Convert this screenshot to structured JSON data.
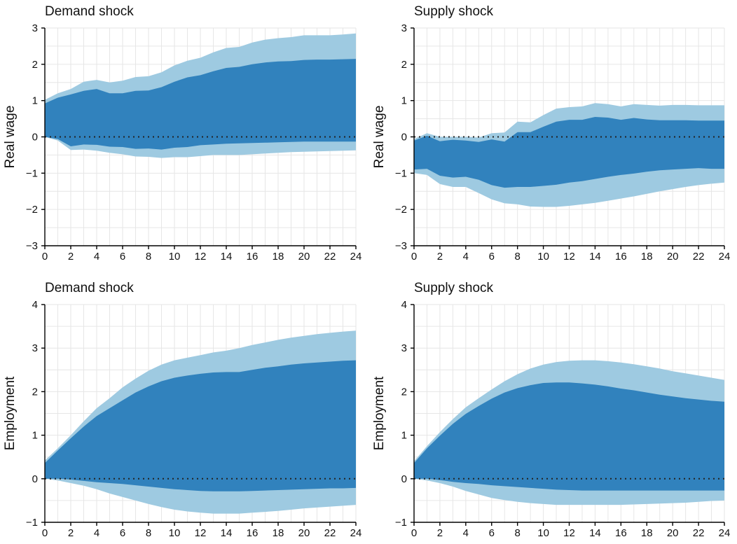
{
  "colors": {
    "outer_band": "#9ecae1",
    "inner_band": "#3182bd",
    "zero_line": "#222222",
    "grid": "#e6e6e6"
  },
  "chart_data": [
    {
      "type": "area",
      "title": "Demand shock",
      "ylabel": "Real wage",
      "xlim": [
        0,
        24
      ],
      "ylim": [
        -3,
        3
      ],
      "xticks": [
        0,
        2,
        4,
        6,
        8,
        10,
        12,
        14,
        16,
        18,
        20,
        22,
        24
      ],
      "yticks": [
        -3,
        -2,
        -1,
        0,
        1,
        2,
        3
      ],
      "ytick_labels": [
        "−3",
        "−2",
        "−1",
        "0",
        "1",
        "2",
        "3"
      ],
      "grid": true,
      "zero_line": "dotted",
      "x": [
        0,
        1,
        2,
        3,
        4,
        5,
        6,
        7,
        8,
        9,
        10,
        11,
        12,
        13,
        14,
        15,
        16,
        17,
        18,
        19,
        20,
        21,
        22,
        23,
        24
      ],
      "series": [
        {
          "role": "outer_band",
          "upper": [
            1.02,
            1.2,
            1.32,
            1.52,
            1.57,
            1.5,
            1.55,
            1.65,
            1.67,
            1.78,
            1.97,
            2.1,
            2.18,
            2.33,
            2.45,
            2.48,
            2.6,
            2.68,
            2.72,
            2.75,
            2.8,
            2.8,
            2.8,
            2.82,
            2.85
          ],
          "lower": [
            0.0,
            -0.1,
            -0.36,
            -0.35,
            -0.38,
            -0.44,
            -0.48,
            -0.54,
            -0.55,
            -0.58,
            -0.56,
            -0.56,
            -0.53,
            -0.5,
            -0.5,
            -0.5,
            -0.48,
            -0.46,
            -0.44,
            -0.42,
            -0.41,
            -0.4,
            -0.39,
            -0.38,
            -0.37
          ]
        },
        {
          "role": "inner_band",
          "upper": [
            0.92,
            1.08,
            1.17,
            1.27,
            1.32,
            1.2,
            1.2,
            1.27,
            1.28,
            1.37,
            1.52,
            1.64,
            1.7,
            1.81,
            1.9,
            1.93,
            2.0,
            2.05,
            2.08,
            2.09,
            2.12,
            2.13,
            2.13,
            2.14,
            2.15
          ],
          "lower": [
            0.0,
            -0.06,
            -0.26,
            -0.21,
            -0.22,
            -0.27,
            -0.28,
            -0.33,
            -0.32,
            -0.35,
            -0.3,
            -0.28,
            -0.23,
            -0.21,
            -0.19,
            -0.18,
            -0.17,
            -0.16,
            -0.15,
            -0.14,
            -0.13,
            -0.13,
            -0.13,
            -0.13,
            -0.13
          ]
        }
      ]
    },
    {
      "type": "area",
      "title": "Supply shock",
      "ylabel": "Real wage",
      "xlim": [
        0,
        24
      ],
      "ylim": [
        -3,
        3
      ],
      "xticks": [
        0,
        2,
        4,
        6,
        8,
        10,
        12,
        14,
        16,
        18,
        20,
        22,
        24
      ],
      "yticks": [
        -3,
        -2,
        -1,
        0,
        1,
        2,
        3
      ],
      "ytick_labels": [
        "−3",
        "−2",
        "−1",
        "0",
        "1",
        "2",
        "3"
      ],
      "grid": true,
      "zero_line": "dotted",
      "x": [
        0,
        1,
        2,
        3,
        4,
        5,
        6,
        7,
        8,
        9,
        10,
        11,
        12,
        13,
        14,
        15,
        16,
        17,
        18,
        19,
        20,
        21,
        22,
        23,
        24
      ],
      "series": [
        {
          "role": "outer_band",
          "upper": [
            -0.06,
            0.1,
            0.0,
            0.0,
            0.0,
            -0.02,
            0.1,
            0.12,
            0.42,
            0.4,
            0.6,
            0.78,
            0.82,
            0.84,
            0.93,
            0.9,
            0.84,
            0.9,
            0.88,
            0.86,
            0.88,
            0.88,
            0.87,
            0.87,
            0.87
          ],
          "lower": [
            -1.0,
            -1.05,
            -1.3,
            -1.38,
            -1.38,
            -1.55,
            -1.72,
            -1.83,
            -1.86,
            -1.92,
            -1.93,
            -1.93,
            -1.9,
            -1.86,
            -1.82,
            -1.76,
            -1.7,
            -1.64,
            -1.57,
            -1.5,
            -1.44,
            -1.38,
            -1.33,
            -1.29,
            -1.26
          ]
        },
        {
          "role": "inner_band",
          "upper": [
            -0.1,
            0.03,
            -0.12,
            -0.08,
            -0.1,
            -0.14,
            -0.07,
            -0.13,
            0.13,
            0.13,
            0.28,
            0.42,
            0.47,
            0.47,
            0.55,
            0.53,
            0.47,
            0.52,
            0.48,
            0.46,
            0.46,
            0.46,
            0.45,
            0.45,
            0.45
          ],
          "lower": [
            -0.9,
            -0.88,
            -1.07,
            -1.12,
            -1.1,
            -1.18,
            -1.33,
            -1.4,
            -1.38,
            -1.38,
            -1.35,
            -1.32,
            -1.26,
            -1.22,
            -1.16,
            -1.1,
            -1.05,
            -1.01,
            -0.96,
            -0.92,
            -0.9,
            -0.88,
            -0.86,
            -0.88,
            -0.88
          ]
        }
      ]
    },
    {
      "type": "area",
      "title": "Demand shock",
      "ylabel": "Employment",
      "xlim": [
        0,
        24
      ],
      "ylim": [
        -1,
        4
      ],
      "xticks": [
        0,
        2,
        4,
        6,
        8,
        10,
        12,
        14,
        16,
        18,
        20,
        22,
        24
      ],
      "yticks": [
        -1,
        0,
        1,
        2,
        3,
        4
      ],
      "ytick_labels": [
        "−1",
        "0",
        "1",
        "2",
        "3",
        "4"
      ],
      "grid": true,
      "zero_line": "dotted",
      "x": [
        0,
        1,
        2,
        3,
        4,
        5,
        6,
        7,
        8,
        9,
        10,
        11,
        12,
        13,
        14,
        15,
        16,
        17,
        18,
        19,
        20,
        21,
        22,
        23,
        24
      ],
      "series": [
        {
          "role": "outer_band",
          "upper": [
            0.42,
            0.7,
            1.0,
            1.32,
            1.62,
            1.85,
            2.1,
            2.3,
            2.48,
            2.62,
            2.72,
            2.78,
            2.84,
            2.9,
            2.94,
            3.0,
            3.07,
            3.13,
            3.19,
            3.24,
            3.28,
            3.32,
            3.35,
            3.38,
            3.4
          ],
          "lower": [
            0.0,
            -0.04,
            -0.1,
            -0.16,
            -0.24,
            -0.34,
            -0.42,
            -0.5,
            -0.58,
            -0.65,
            -0.71,
            -0.75,
            -0.78,
            -0.8,
            -0.8,
            -0.8,
            -0.78,
            -0.76,
            -0.74,
            -0.71,
            -0.68,
            -0.66,
            -0.64,
            -0.62,
            -0.6
          ]
        },
        {
          "role": "inner_band",
          "upper": [
            0.36,
            0.65,
            0.93,
            1.2,
            1.44,
            1.62,
            1.8,
            1.98,
            2.12,
            2.24,
            2.32,
            2.37,
            2.41,
            2.44,
            2.45,
            2.45,
            2.5,
            2.55,
            2.58,
            2.62,
            2.65,
            2.67,
            2.69,
            2.71,
            2.72
          ],
          "lower": [
            0.0,
            0.0,
            -0.02,
            -0.05,
            -0.08,
            -0.1,
            -0.12,
            -0.15,
            -0.18,
            -0.21,
            -0.24,
            -0.26,
            -0.28,
            -0.29,
            -0.29,
            -0.29,
            -0.28,
            -0.27,
            -0.26,
            -0.25,
            -0.24,
            -0.23,
            -0.22,
            -0.22,
            -0.21
          ]
        }
      ]
    },
    {
      "type": "area",
      "title": "Supply shock",
      "ylabel": "Employment",
      "xlim": [
        0,
        24
      ],
      "ylim": [
        -1,
        4
      ],
      "xticks": [
        0,
        2,
        4,
        6,
        8,
        10,
        12,
        14,
        16,
        18,
        20,
        22,
        24
      ],
      "yticks": [
        -1,
        0,
        1,
        2,
        3,
        4
      ],
      "ytick_labels": [
        "−1",
        "0",
        "1",
        "2",
        "3",
        "4"
      ],
      "grid": true,
      "zero_line": "dotted",
      "x": [
        0,
        1,
        2,
        3,
        4,
        5,
        6,
        7,
        8,
        9,
        10,
        11,
        12,
        13,
        14,
        15,
        16,
        17,
        18,
        19,
        20,
        21,
        22,
        23,
        24
      ],
      "series": [
        {
          "role": "outer_band",
          "upper": [
            0.4,
            0.75,
            1.07,
            1.37,
            1.64,
            1.85,
            2.05,
            2.24,
            2.4,
            2.53,
            2.62,
            2.68,
            2.71,
            2.72,
            2.72,
            2.7,
            2.67,
            2.63,
            2.58,
            2.53,
            2.47,
            2.42,
            2.37,
            2.32,
            2.27
          ],
          "lower": [
            0.0,
            -0.04,
            -0.1,
            -0.18,
            -0.28,
            -0.36,
            -0.44,
            -0.49,
            -0.53,
            -0.56,
            -0.58,
            -0.6,
            -0.6,
            -0.6,
            -0.6,
            -0.6,
            -0.6,
            -0.59,
            -0.58,
            -0.57,
            -0.56,
            -0.55,
            -0.53,
            -0.51,
            -0.5
          ]
        },
        {
          "role": "inner_band",
          "upper": [
            0.36,
            0.7,
            0.99,
            1.26,
            1.49,
            1.67,
            1.84,
            1.98,
            2.08,
            2.15,
            2.2,
            2.21,
            2.21,
            2.19,
            2.16,
            2.12,
            2.07,
            2.03,
            1.98,
            1.93,
            1.89,
            1.85,
            1.82,
            1.79,
            1.77
          ],
          "lower": [
            0.0,
            0.0,
            -0.03,
            -0.07,
            -0.1,
            -0.12,
            -0.15,
            -0.17,
            -0.19,
            -0.21,
            -0.23,
            -0.25,
            -0.26,
            -0.27,
            -0.27,
            -0.27,
            -0.27,
            -0.27,
            -0.27,
            -0.27,
            -0.27,
            -0.27,
            -0.27,
            -0.27,
            -0.27
          ]
        }
      ]
    }
  ]
}
